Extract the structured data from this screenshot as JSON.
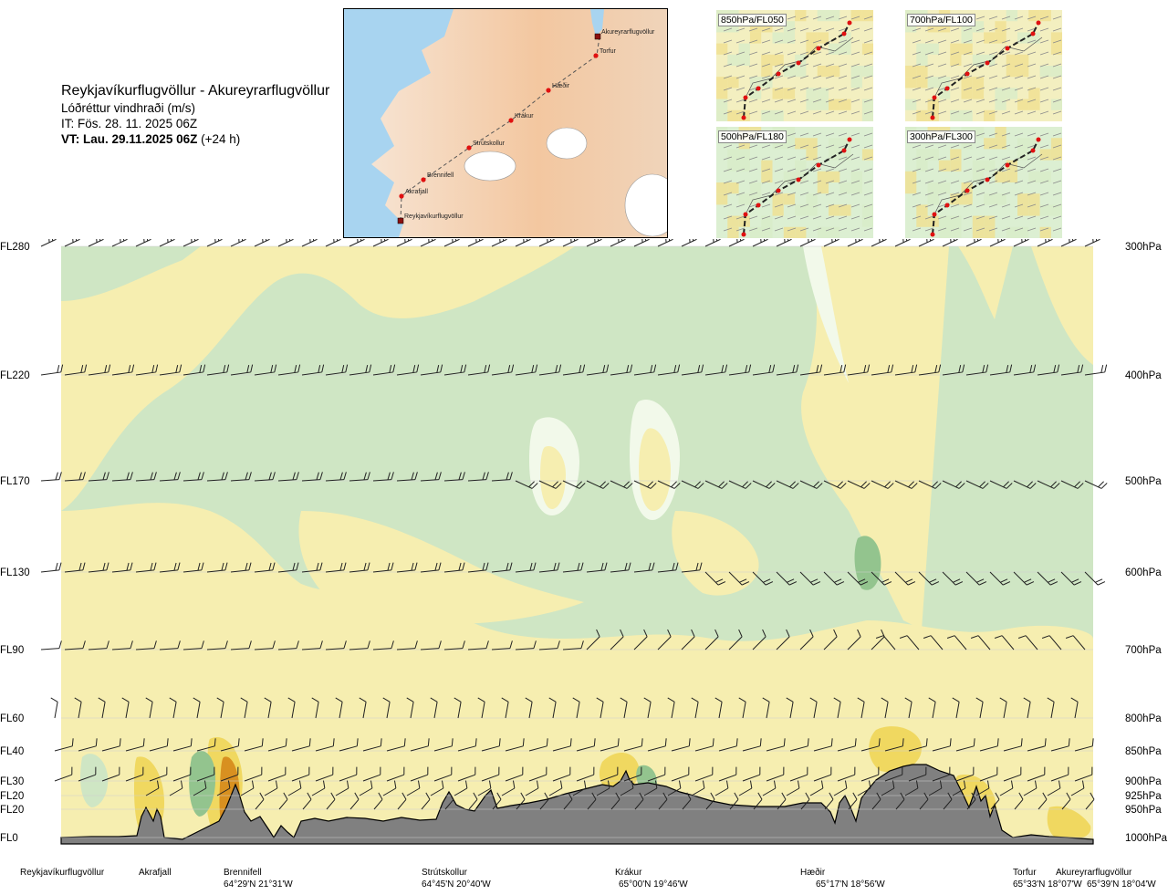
{
  "header": {
    "route": "Reykjavíkurflugvöllur - Akureyrarflugvöllur",
    "parameter": "Lóðréttur vindhraði (m/s)",
    "issue_time": "IT: Fös. 28. 11. 2025 06Z",
    "valid_time_bold": "VT: Lau. 29.11.2025 06Z",
    "valid_time_suffix": "(+24 h)"
  },
  "route_map": {
    "points": [
      {
        "name": "Akureyrarflugvöllur"
      },
      {
        "name": "Torfur"
      },
      {
        "name": "Hæðir"
      },
      {
        "name": "Krákur"
      },
      {
        "name": "Strútskollur"
      },
      {
        "name": "Brennifell"
      },
      {
        "name": "Akrafjall"
      },
      {
        "name": "Reykjavíkurflugvöllur"
      }
    ]
  },
  "insets": [
    {
      "label": "850hPa/FL050"
    },
    {
      "label": "700hPa/FL100"
    },
    {
      "label": "500hPa/FL180"
    },
    {
      "label": "300hPa/FL300"
    }
  ],
  "colors": {
    "updraft_weak": "#cfe6c4",
    "updraft_strong": "#93c48e",
    "downdraft_weak": "#f6eeb0",
    "downdraft_mid": "#f0d860",
    "downdraft_strong": "#d89020",
    "neutral": "#f2f9ea",
    "terrain": "#808080"
  },
  "chart_data": {
    "type": "heatmap",
    "title": "Reykjavíkurflugvöllur - Akureyrarflugvöllur",
    "variable": "Lóðréttur vindhraði (m/s)",
    "y_left_labels": [
      "FL280",
      "FL220",
      "FL170",
      "FL130",
      "FL90",
      "FL60",
      "FL40",
      "FL30",
      "FL20",
      "FL20",
      "FL0"
    ],
    "y_right_labels": [
      "300hPa",
      "400hPa",
      "500hPa",
      "600hPa",
      "700hPa",
      "800hPa",
      "850hPa",
      "900hPa",
      "925hPa",
      "950hPa",
      "1000hPa"
    ],
    "pressure_levels_hPa": [
      300,
      400,
      500,
      600,
      700,
      800,
      850,
      900,
      925,
      950,
      1000
    ],
    "stations": [
      {
        "name": "Reykjavíkurflugvöllur",
        "coords": ""
      },
      {
        "name": "Akrafjall",
        "coords": ""
      },
      {
        "name": "Brennifell",
        "coords": "64°29'N 21°31'W"
      },
      {
        "name": "Strútskollur",
        "coords": "64°45'N 20°40'W"
      },
      {
        "name": "Krákur",
        "coords": "65°00'N 19°46'W"
      },
      {
        "name": "Hæðir",
        "coords": "65°17'N 18°56'W"
      },
      {
        "name": "Torfur",
        "coords": "65°33'N 18°07'W"
      },
      {
        "name": "Akureyrarflugvöllur",
        "coords": "65°39'N 18°04'W"
      }
    ],
    "grid": true,
    "legend": "none"
  }
}
